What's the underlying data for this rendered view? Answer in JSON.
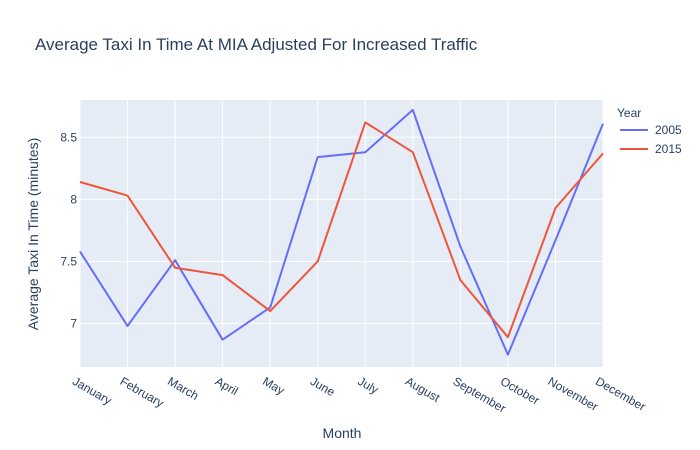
{
  "chart_data": {
    "type": "line",
    "title": "Average Taxi In Time At MIA Adjusted For Increased Traffic",
    "xlabel": "Month",
    "ylabel": "Average Taxi In Time (minutes)",
    "categories": [
      "January",
      "February",
      "March",
      "April",
      "May",
      "June",
      "July",
      "August",
      "September",
      "October",
      "November",
      "December"
    ],
    "yticks": [
      7,
      7.5,
      8,
      8.5
    ],
    "ytick_labels": [
      "7",
      "7.5",
      "8",
      "8.5"
    ],
    "ylim": [
      6.65,
      8.8
    ],
    "grid": true,
    "legend_title": "Year",
    "legend_placement": "top-right",
    "series": [
      {
        "name": "2005",
        "color": "#636efa",
        "values": [
          7.58,
          6.98,
          7.51,
          6.87,
          7.13,
          8.34,
          8.38,
          8.72,
          7.62,
          6.75,
          7.67,
          8.61
        ]
      },
      {
        "name": "2015",
        "color": "#ef553b",
        "values": [
          8.14,
          8.03,
          7.45,
          7.39,
          7.1,
          7.5,
          8.62,
          8.38,
          7.35,
          6.89,
          7.93,
          8.37
        ]
      }
    ],
    "plot_background": "#e5ecf6",
    "grid_color": "#ffffff"
  }
}
